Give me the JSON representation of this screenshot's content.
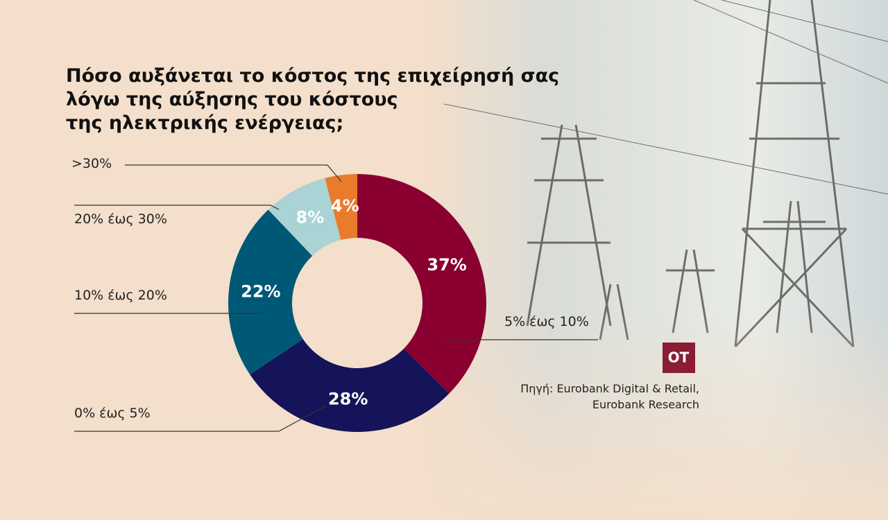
{
  "chart_data": {
    "type": "donut",
    "title": [
      "Πόσο αυξάνεται το κόστος της επιχείρησή σας",
      "λόγω της αύξησης του κόστους",
      "της ηλεκτρικής ενέργειας;"
    ],
    "categories": [
      "5% έως 10%",
      "0% έως 5%",
      "10% έως 20%",
      "20% έως 30%",
      ">30%"
    ],
    "values": [
      37,
      28,
      22,
      8,
      4
    ],
    "value_labels": [
      "37%",
      "28%",
      "22%",
      "8%",
      "4%"
    ],
    "colors": [
      "#8a0030",
      "#15145a",
      "#005877",
      "#a9d3d5",
      "#ea7a2c"
    ],
    "logo": "OT",
    "source": [
      "Πηγή: Eurobank Digital & Retail,",
      "Eurobank Research"
    ]
  }
}
